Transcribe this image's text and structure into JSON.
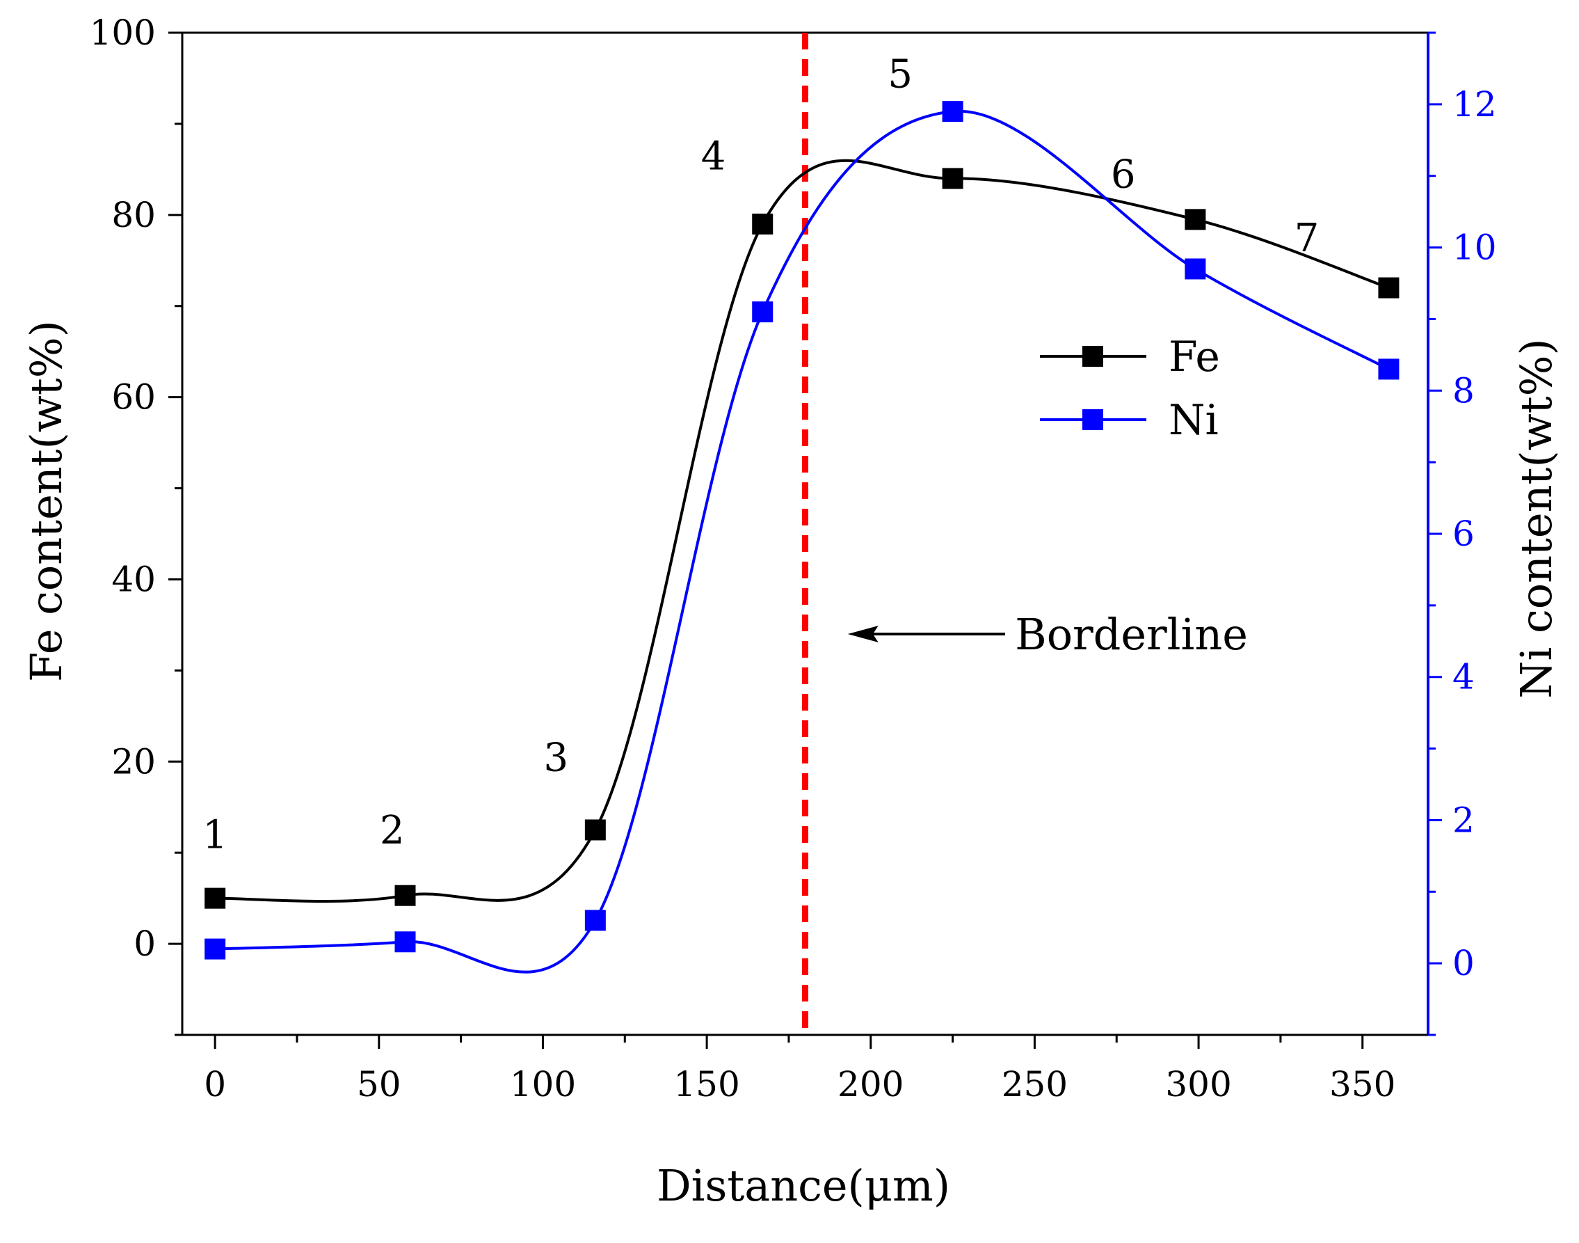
{
  "chart_data": {
    "type": "line",
    "xlabel": "Distance(μm)",
    "ylabel_left": "Fe content(wt%)",
    "ylabel_right": "Ni content(wt%)",
    "xlim": [
      -10,
      370
    ],
    "ylim_left": [
      -10,
      100
    ],
    "ylim_right": [
      -1,
      13
    ],
    "x_ticks": [
      0,
      50,
      100,
      150,
      200,
      250,
      300,
      350
    ],
    "y_left_ticks": [
      0,
      20,
      40,
      60,
      80,
      100
    ],
    "y_right_ticks": [
      0,
      2,
      4,
      6,
      8,
      10,
      12
    ],
    "grid": false,
    "legend_position": "upper-right",
    "colors": {
      "fe": "#000000",
      "ni": "#0000ff",
      "borderline": "#ff0000",
      "right_axis": "#0000ff"
    },
    "series": [
      {
        "name": "Fe",
        "axis": "left",
        "color": "#000000",
        "marker": "square",
        "x": [
          0,
          58,
          116,
          167,
          225,
          299,
          358
        ],
        "values": [
          5,
          5.3,
          12.5,
          79,
          84,
          79.5,
          72
        ]
      },
      {
        "name": "Ni",
        "axis": "right",
        "color": "#0000ff",
        "marker": "square",
        "x": [
          0,
          58,
          116,
          167,
          225,
          299,
          358
        ],
        "values": [
          0.2,
          0.3,
          0.6,
          9.1,
          11.9,
          9.7,
          8.3
        ]
      }
    ],
    "point_labels": [
      {
        "text": "1",
        "x": 0,
        "y": 10.5
      },
      {
        "text": "2",
        "x": 54,
        "y": 11
      },
      {
        "text": "3",
        "x": 104,
        "y": 19
      },
      {
        "text": "4",
        "x": 152,
        "y": 85
      },
      {
        "text": "5",
        "x": 209,
        "y": 94
      },
      {
        "text": "6",
        "x": 277,
        "y": 83
      },
      {
        "text": "7",
        "x": 333,
        "y": 76
      }
    ],
    "borderline": {
      "x": 180,
      "label": "Borderline",
      "label_position": {
        "x": 244,
        "y": 34
      },
      "arrow_from": {
        "x": 241,
        "y": 34
      },
      "arrow_to": {
        "x": 193,
        "y": 34
      }
    }
  }
}
